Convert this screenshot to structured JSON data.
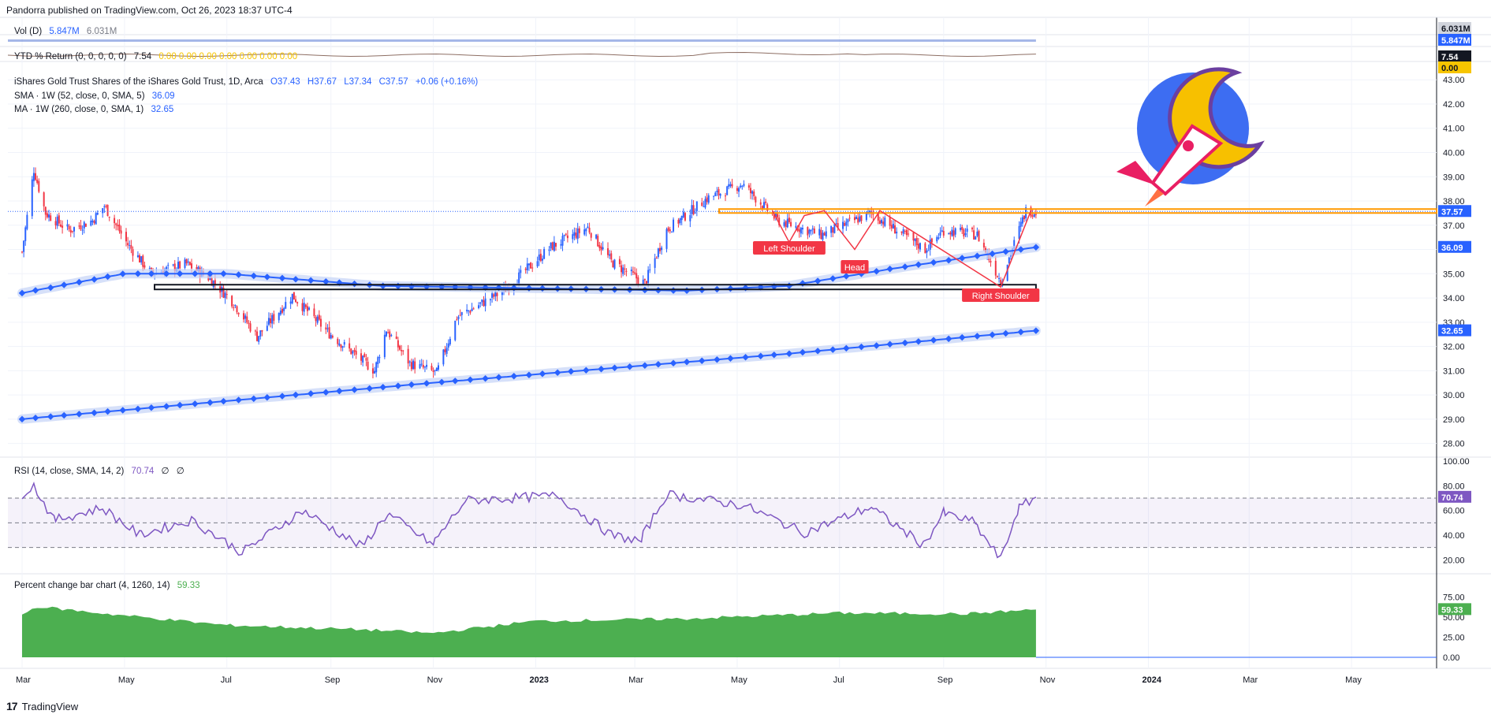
{
  "header": {
    "published": "Pandorra published on TradingView.com, Oct 26, 2023 18:37 UTC-4"
  },
  "legends": {
    "volume": {
      "label": "Vol (D)",
      "v1": "5.847M",
      "v2": "6.031M"
    },
    "ytd": {
      "label": "YTD % Return (0, 0, 0, 0, 0)",
      "v1": "7.54",
      "rest": "0.00  0.00  0.00  0.00  0.00  0.00  0.00"
    },
    "main": {
      "label": "iShares Gold Trust Shares of the iShares Gold Trust, 1D, Arca",
      "o": "O37.43",
      "h": "H37.67",
      "l": "L37.34",
      "c": "C37.57",
      "chg": "+0.06 (+0.16%)"
    },
    "sma": {
      "label": "SMA · 1W (52, close, 0, SMA, 5)",
      "v": "36.09"
    },
    "ma": {
      "label": "MA · 1W (260, close, 0, SMA, 1)",
      "v": "32.65"
    },
    "rsi": {
      "label": "RSI (14, close, SMA, 14, 2)",
      "v": "70.74",
      "e1": "∅",
      "e2": "∅"
    },
    "pct": {
      "label": "Percent change bar chart (4, 1260, 14)",
      "v": "59.33"
    }
  },
  "annotations": {
    "left_shoulder": "Left Shoulder",
    "head": "Head",
    "right_shoulder": "Right Shoulder"
  },
  "price_badges": {
    "last": "37.57",
    "sma": "36.09",
    "ma": "32.65",
    "rsi": "70.74",
    "pct": "59.33",
    "vol1": "6.031M",
    "vol2": "5.847M",
    "ytd1": "7.54",
    "ytd2": "0.00"
  },
  "footer": {
    "brand": "TradingView"
  },
  "colors": {
    "up": "#2962ff",
    "down": "#f23645",
    "sma": "#2962ff",
    "rsi": "#7e57c2",
    "pct": "#4caf50",
    "resistance": "#ff9800",
    "support": "#131722",
    "pattern": "#f23645"
  },
  "chart_data": [
    {
      "type": "candlestick",
      "title": "iShares Gold Trust Shares of the iShares Gold Trust, 1D, Arca",
      "x_tick_labels": [
        "Mar",
        "May",
        "Jul",
        "Sep",
        "Nov",
        "2023",
        "Mar",
        "May",
        "Jul",
        "Sep",
        "Nov",
        "2024",
        "Mar",
        "May"
      ],
      "y_tick_labels": [
        "43.00",
        "42.00",
        "41.00",
        "40.00",
        "39.00",
        "38.00",
        "37.00",
        "36.00",
        "35.00",
        "34.00",
        "33.00",
        "32.00",
        "31.00",
        "30.00",
        "29.00",
        "28.00"
      ],
      "ylim": [
        27.5,
        43.3
      ],
      "close_path": [
        {
          "x": "2022-03-01",
          "y": 35.9
        },
        {
          "x": "2022-03-08",
          "y": 39.3
        },
        {
          "x": "2022-03-15",
          "y": 37.5
        },
        {
          "x": "2022-03-29",
          "y": 36.8
        },
        {
          "x": "2022-04-12",
          "y": 37.2
        },
        {
          "x": "2022-04-19",
          "y": 37.8
        },
        {
          "x": "2022-05-03",
          "y": 36.2
        },
        {
          "x": "2022-05-17",
          "y": 35.0
        },
        {
          "x": "2022-06-07",
          "y": 35.4
        },
        {
          "x": "2022-06-21",
          "y": 34.8
        },
        {
          "x": "2022-07-05",
          "y": 33.8
        },
        {
          "x": "2022-07-19",
          "y": 32.4
        },
        {
          "x": "2022-08-09",
          "y": 34.1
        },
        {
          "x": "2022-08-30",
          "y": 32.6
        },
        {
          "x": "2022-09-27",
          "y": 31.0
        },
        {
          "x": "2022-10-04",
          "y": 32.7
        },
        {
          "x": "2022-10-18",
          "y": 31.3
        },
        {
          "x": "2022-11-03",
          "y": 30.9
        },
        {
          "x": "2022-11-15",
          "y": 33.2
        },
        {
          "x": "2022-12-13",
          "y": 34.3
        },
        {
          "x": "2023-01-10",
          "y": 36.1
        },
        {
          "x": "2023-02-01",
          "y": 36.9
        },
        {
          "x": "2023-02-15",
          "y": 35.5
        },
        {
          "x": "2023-03-07",
          "y": 34.6
        },
        {
          "x": "2023-03-20",
          "y": 36.8
        },
        {
          "x": "2023-04-13",
          "y": 38.1
        },
        {
          "x": "2023-05-04",
          "y": 38.7
        },
        {
          "x": "2023-05-25",
          "y": 37.2
        },
        {
          "x": "2023-06-20",
          "y": 36.6
        },
        {
          "x": "2023-07-20",
          "y": 37.5
        },
        {
          "x": "2023-08-21",
          "y": 36.0
        },
        {
          "x": "2023-09-01",
          "y": 36.8
        },
        {
          "x": "2023-09-21",
          "y": 36.6
        },
        {
          "x": "2023-10-05",
          "y": 34.7
        },
        {
          "x": "2023-10-20",
          "y": 37.6
        },
        {
          "x": "2023-10-26",
          "y": 37.57
        }
      ],
      "series": [
        {
          "name": "SMA · 1W (52, close, 0, SMA, 5)",
          "points": [
            {
              "x": "2022-03-01",
              "y": 34.2
            },
            {
              "x": "2022-05-01",
              "y": 35.0
            },
            {
              "x": "2022-07-01",
              "y": 35.0
            },
            {
              "x": "2022-10-01",
              "y": 34.5
            },
            {
              "x": "2023-01-01",
              "y": 34.4
            },
            {
              "x": "2023-04-01",
              "y": 34.3
            },
            {
              "x": "2023-06-01",
              "y": 34.5
            },
            {
              "x": "2023-08-01",
              "y": 35.2
            },
            {
              "x": "2023-10-26",
              "y": 36.09
            }
          ]
        },
        {
          "name": "MA · 1W (260, close, 0, SMA, 1)",
          "points": [
            {
              "x": "2022-03-01",
              "y": 29.0
            },
            {
              "x": "2022-11-01",
              "y": 30.5
            },
            {
              "x": "2023-06-01",
              "y": 31.7
            },
            {
              "x": "2023-10-26",
              "y": 32.65
            }
          ]
        }
      ],
      "resistance_level": 37.57,
      "support_level": 34.45,
      "last_price": 37.57
    },
    {
      "type": "line",
      "title": "RSI (14, close, SMA, 14, 2)",
      "y_tick_labels": [
        "100.00",
        "80.00",
        "60.00",
        "40.00",
        "20.00"
      ],
      "ylim": [
        10,
        100
      ],
      "bands": [
        70,
        50,
        30
      ],
      "points": [
        {
          "x": "2022-03-01",
          "y": 73
        },
        {
          "x": "2022-03-08",
          "y": 80
        },
        {
          "x": "2022-03-20",
          "y": 52
        },
        {
          "x": "2022-04-18",
          "y": 62
        },
        {
          "x": "2022-05-10",
          "y": 40
        },
        {
          "x": "2022-06-10",
          "y": 52
        },
        {
          "x": "2022-07-10",
          "y": 26
        },
        {
          "x": "2022-08-15",
          "y": 60
        },
        {
          "x": "2022-09-20",
          "y": 30
        },
        {
          "x": "2022-10-05",
          "y": 58
        },
        {
          "x": "2022-11-01",
          "y": 32
        },
        {
          "x": "2022-11-20",
          "y": 68
        },
        {
          "x": "2023-01-15",
          "y": 72
        },
        {
          "x": "2023-02-15",
          "y": 40
        },
        {
          "x": "2023-03-05",
          "y": 35
        },
        {
          "x": "2023-03-20",
          "y": 73
        },
        {
          "x": "2023-05-05",
          "y": 64
        },
        {
          "x": "2023-06-10",
          "y": 42
        },
        {
          "x": "2023-07-20",
          "y": 63
        },
        {
          "x": "2023-08-20",
          "y": 32
        },
        {
          "x": "2023-09-01",
          "y": 58
        },
        {
          "x": "2023-09-20",
          "y": 50
        },
        {
          "x": "2023-10-05",
          "y": 20
        },
        {
          "x": "2023-10-15",
          "y": 60
        },
        {
          "x": "2023-10-26",
          "y": 70.74
        }
      ]
    },
    {
      "type": "area",
      "title": "Percent change bar chart (4, 1260, 14)",
      "y_tick_labels": [
        "75.00",
        "50.00",
        "25.00",
        "0.00"
      ],
      "ylim": [
        0,
        90
      ],
      "points": [
        {
          "x": "2022-03-01",
          "y": 53
        },
        {
          "x": "2022-03-10",
          "y": 63
        },
        {
          "x": "2022-05-01",
          "y": 52
        },
        {
          "x": "2022-07-01",
          "y": 40
        },
        {
          "x": "2022-09-25",
          "y": 34
        },
        {
          "x": "2022-11-01",
          "y": 30
        },
        {
          "x": "2023-01-01",
          "y": 45
        },
        {
          "x": "2023-04-01",
          "y": 48
        },
        {
          "x": "2023-07-01",
          "y": 55
        },
        {
          "x": "2023-09-15",
          "y": 54
        },
        {
          "x": "2023-10-26",
          "y": 59.33
        }
      ]
    },
    {
      "type": "line",
      "title": "Vol (D)",
      "values": {
        "volume": "5.847M",
        "average": "6.031M"
      }
    }
  ]
}
